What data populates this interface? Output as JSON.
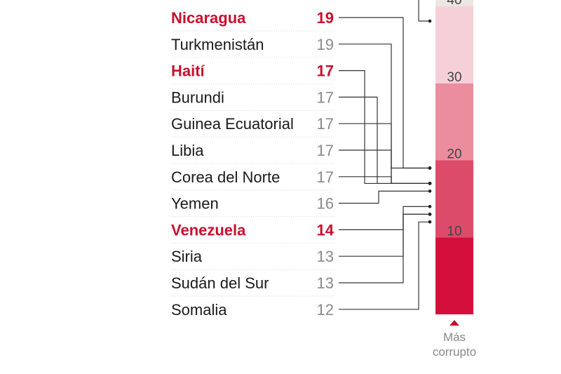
{
  "chart_data": {
    "type": "ranked-list-with-scale",
    "rows": [
      {
        "country": "Nicaragua",
        "score": 19,
        "highlight": true
      },
      {
        "country": "Turkmenistán",
        "score": 19,
        "highlight": false
      },
      {
        "country": "Haití",
        "score": 17,
        "highlight": true
      },
      {
        "country": "Burundi",
        "score": 17,
        "highlight": false
      },
      {
        "country": "Guinea Ecuatorial",
        "score": 17,
        "highlight": false
      },
      {
        "country": "Libia",
        "score": 17,
        "highlight": false
      },
      {
        "country": "Corea del Norte",
        "score": 17,
        "highlight": false
      },
      {
        "country": "Yemen",
        "score": 16,
        "highlight": false
      },
      {
        "country": "Venezuela",
        "score": 14,
        "highlight": true
      },
      {
        "country": "Siria",
        "score": 13,
        "highlight": false
      },
      {
        "country": "Sudán del Sur",
        "score": 13,
        "highlight": false
      },
      {
        "country": "Somalia",
        "score": 12,
        "highlight": false
      }
    ],
    "scale": {
      "ticks": [
        {
          "label": "40",
          "value": 40
        },
        {
          "label": "30",
          "value": 30
        },
        {
          "label": "20",
          "value": 20
        },
        {
          "label": "10",
          "value": 10
        }
      ],
      "bands": [
        {
          "from": 40,
          "to": 43,
          "color": "#ede6e2"
        },
        {
          "from": 30,
          "to": 40,
          "color": "#f6d0d8"
        },
        {
          "from": 20,
          "to": 30,
          "color": "#ec8d9e"
        },
        {
          "from": 10,
          "to": 20,
          "color": "#dc4c6a"
        },
        {
          "from": 0,
          "to": 10,
          "color": "#d50f3b"
        }
      ],
      "footer_line1": "Más",
      "footer_line2": "corrupto"
    },
    "colors": {
      "highlight": "#c8102e",
      "text": "#1a1a1a",
      "muted": "#8a8a8a"
    }
  }
}
